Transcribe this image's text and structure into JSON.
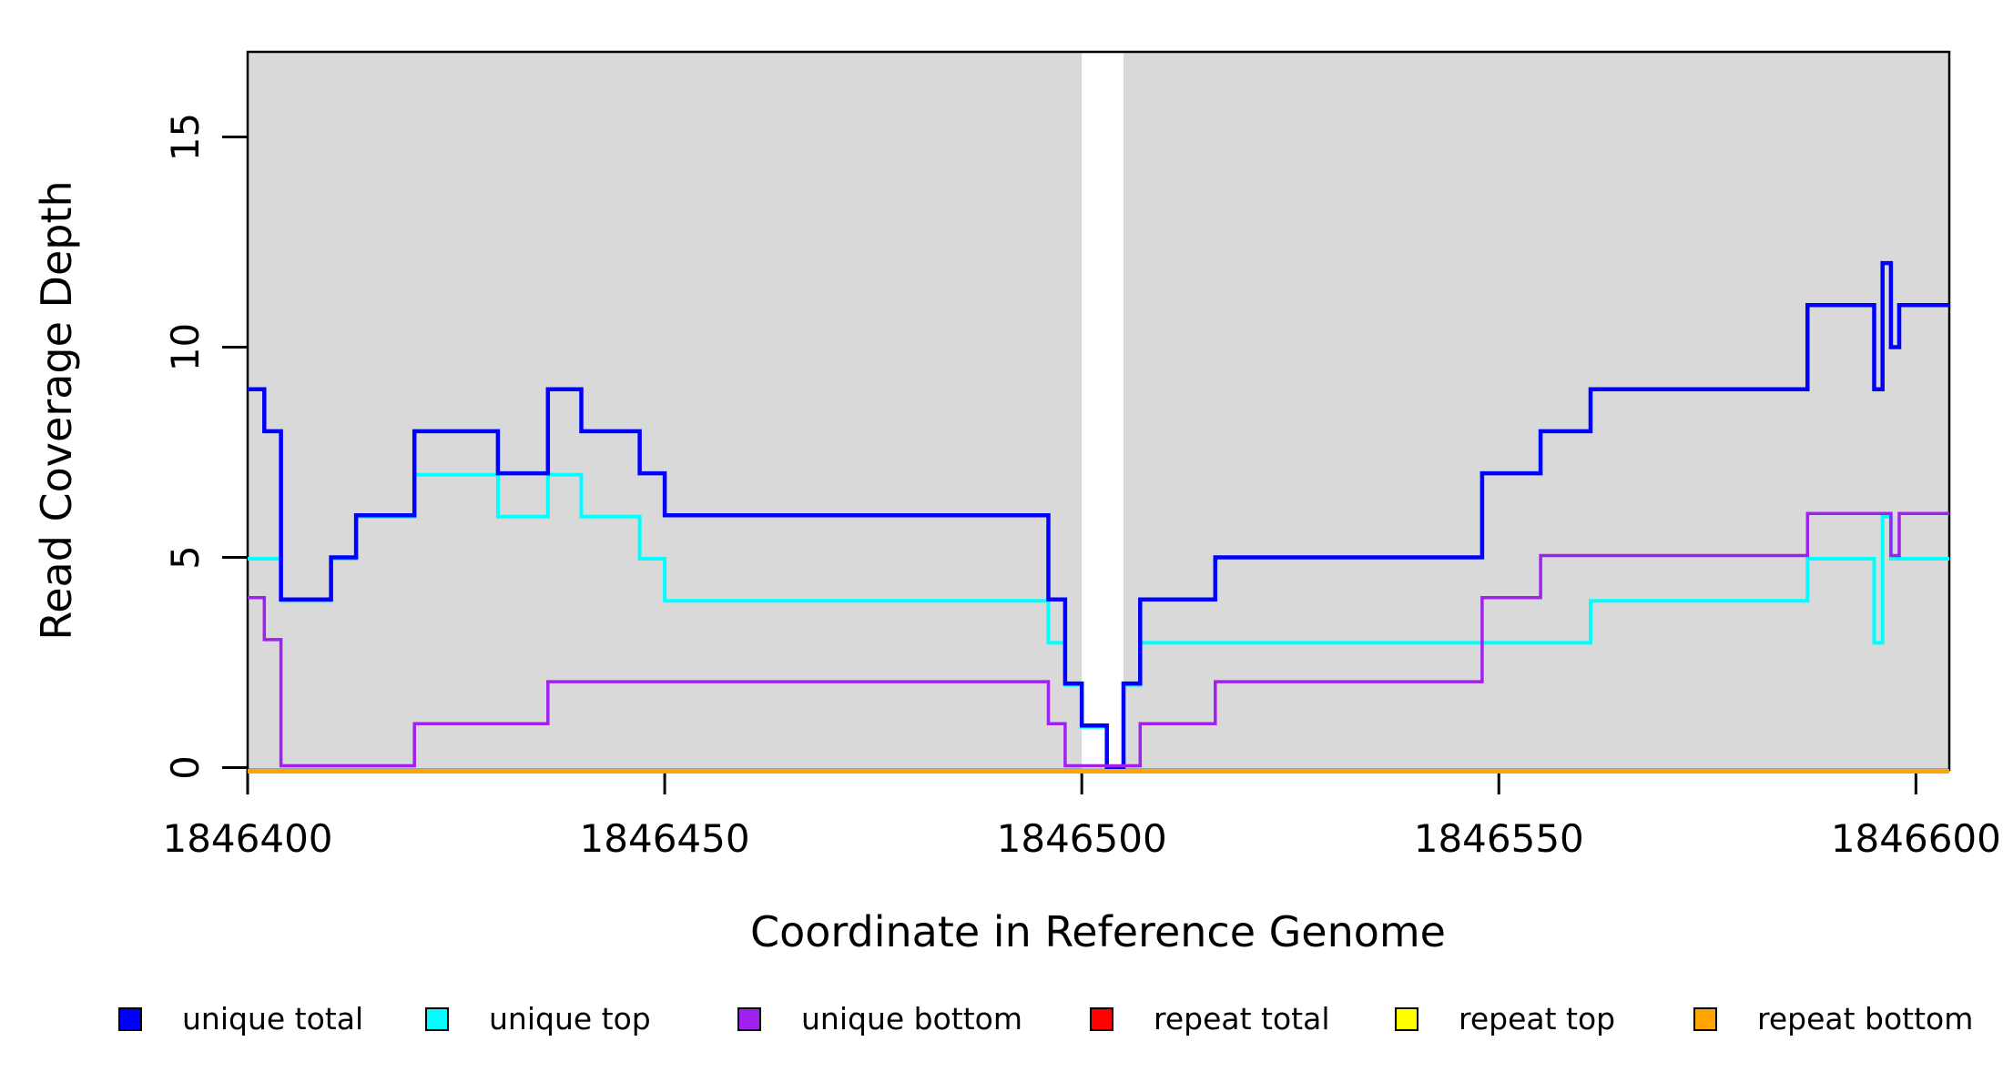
{
  "chart_data": {
    "type": "line",
    "subtype": "step-coverage-plot",
    "title": "",
    "xlabel": "Coordinate in Reference Genome",
    "ylabel": "Read Coverage Depth",
    "x_ticks": [
      1846400,
      1846450,
      1846500,
      1846550,
      1846600
    ],
    "y_ticks": [
      0,
      5,
      10,
      15
    ],
    "xlim": [
      1846400,
      1846604
    ],
    "ylim": [
      0,
      17
    ],
    "grid": false,
    "plot_background": "#d9d9d9",
    "gap_band": {
      "x0": 1846500,
      "x1": 1846505,
      "color": "#ffffff"
    },
    "legend_position": "bottom-horizontal",
    "series": [
      {
        "name": "repeat total",
        "color": "#ff0000",
        "steps": [
          [
            1846400,
            0
          ]
        ]
      },
      {
        "name": "repeat top",
        "color": "#ffff00",
        "steps": [
          [
            1846400,
            0
          ]
        ]
      },
      {
        "name": "unique top",
        "color": "#00ffff",
        "steps": [
          [
            1846400,
            5
          ],
          [
            1846404,
            4
          ],
          [
            1846410,
            5
          ],
          [
            1846413,
            6
          ],
          [
            1846420,
            7
          ],
          [
            1846430,
            6
          ],
          [
            1846436,
            7
          ],
          [
            1846440,
            6
          ],
          [
            1846447,
            5
          ],
          [
            1846450,
            4
          ],
          [
            1846496,
            3
          ],
          [
            1846498,
            2
          ],
          [
            1846500,
            1
          ],
          [
            1846503,
            0
          ],
          [
            1846505,
            2
          ],
          [
            1846507,
            3
          ],
          [
            1846561,
            4
          ],
          [
            1846587,
            5
          ],
          [
            1846595,
            3
          ],
          [
            1846596,
            6
          ],
          [
            1846597,
            5
          ]
        ]
      },
      {
        "name": "unique total",
        "color": "#0000ff",
        "steps": [
          [
            1846400,
            9
          ],
          [
            1846402,
            8
          ],
          [
            1846404,
            4
          ],
          [
            1846410,
            5
          ],
          [
            1846413,
            6
          ],
          [
            1846420,
            8
          ],
          [
            1846430,
            7
          ],
          [
            1846436,
            9
          ],
          [
            1846440,
            8
          ],
          [
            1846447,
            7
          ],
          [
            1846450,
            6
          ],
          [
            1846496,
            4
          ],
          [
            1846498,
            2
          ],
          [
            1846500,
            1
          ],
          [
            1846503,
            0
          ],
          [
            1846505,
            2
          ],
          [
            1846507,
            4
          ],
          [
            1846516,
            5
          ],
          [
            1846548,
            7
          ],
          [
            1846555,
            8
          ],
          [
            1846561,
            9
          ],
          [
            1846587,
            11
          ],
          [
            1846595,
            9
          ],
          [
            1846596,
            12
          ],
          [
            1846597,
            10
          ],
          [
            1846598,
            11
          ]
        ]
      },
      {
        "name": "unique bottom",
        "color": "#a020f0",
        "steps": [
          [
            1846400,
            4
          ],
          [
            1846402,
            3
          ],
          [
            1846404,
            0
          ],
          [
            1846420,
            1
          ],
          [
            1846436,
            2
          ],
          [
            1846496,
            1
          ],
          [
            1846498,
            0
          ],
          [
            1846507,
            1
          ],
          [
            1846516,
            2
          ],
          [
            1846548,
            4
          ],
          [
            1846555,
            5
          ],
          [
            1846587,
            6
          ],
          [
            1846597,
            5
          ],
          [
            1846598,
            6
          ]
        ]
      },
      {
        "name": "repeat bottom",
        "color": "#ffa500",
        "steps": [
          [
            1846400,
            0
          ]
        ]
      }
    ],
    "legend": [
      {
        "label": "unique total",
        "color": "#0000ff"
      },
      {
        "label": "unique top",
        "color": "#00ffff"
      },
      {
        "label": "unique bottom",
        "color": "#a020f0"
      },
      {
        "label": "repeat total",
        "color": "#ff0000"
      },
      {
        "label": "repeat top",
        "color": "#ffff00"
      },
      {
        "label": "repeat bottom",
        "color": "#ffa500"
      }
    ]
  }
}
